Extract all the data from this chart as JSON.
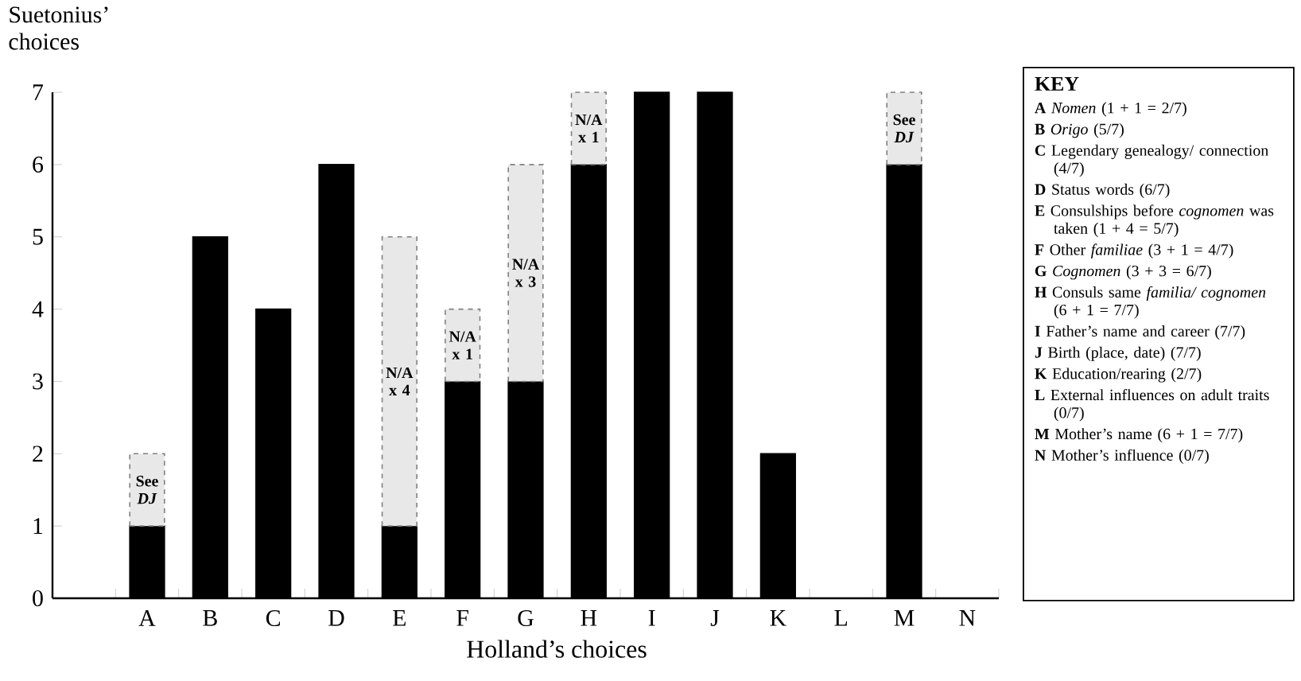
{
  "chart_data": {
    "type": "bar",
    "stacked": true,
    "ylabel": "Suetonius’ choices",
    "xlabel": "Holland’s choices",
    "categories": [
      "A",
      "B",
      "C",
      "D",
      "E",
      "F",
      "G",
      "H",
      "I",
      "J",
      "K",
      "L",
      "M",
      "N"
    ],
    "ylim": [
      0,
      7
    ],
    "yticks": [
      0,
      1,
      2,
      3,
      4,
      5,
      6,
      7
    ],
    "series": [
      {
        "color": "#000000",
        "line_style": "solid",
        "values": [
          1,
          5,
          4,
          6,
          1,
          3,
          3,
          6,
          7,
          7,
          2,
          0,
          6,
          0
        ]
      },
      {
        "color": "#e8e8e8",
        "line_style": "dashed",
        "values": [
          1,
          null,
          null,
          null,
          4,
          1,
          3,
          1,
          null,
          null,
          null,
          null,
          1,
          null
        ],
        "value_labels": [
          "See *DJ*",
          null,
          null,
          null,
          "N/A x 4",
          "N/A x 1",
          "N/A x 3",
          "N/A x 1",
          null,
          null,
          null,
          null,
          "See *DJ*",
          null
        ]
      }
    ],
    "legend_title": "KEY",
    "annotations": [
      "**A** *Nomen* (1 + 1 = 2/7)",
      "**B** *Origo* (5/7)",
      "**C** Legendary genealogy/ connection (4/7)",
      "**D** Status words (6/7)",
      "**E** Consulships before *cognomen* was taken (1 + 4 = 5/7)",
      "**F** Other *familiae* (3 + 1 = 4/7)",
      "**G** *Cognomen* (3 + 3 = 6/7)",
      "**H** Consuls same *familia/ cognomen* (6 + 1 = 7/7)",
      "**I** Father’s name and career (7/7)",
      "**J** Birth (place, date) (7/7)",
      "**K** Education/rearing (2/7)",
      "**L** External influences on adult traits (0/7)",
      "**M** Mother’s name (6 + 1 = 7/7)",
      "**N** Mother’s influence (0/7)"
    ]
  }
}
